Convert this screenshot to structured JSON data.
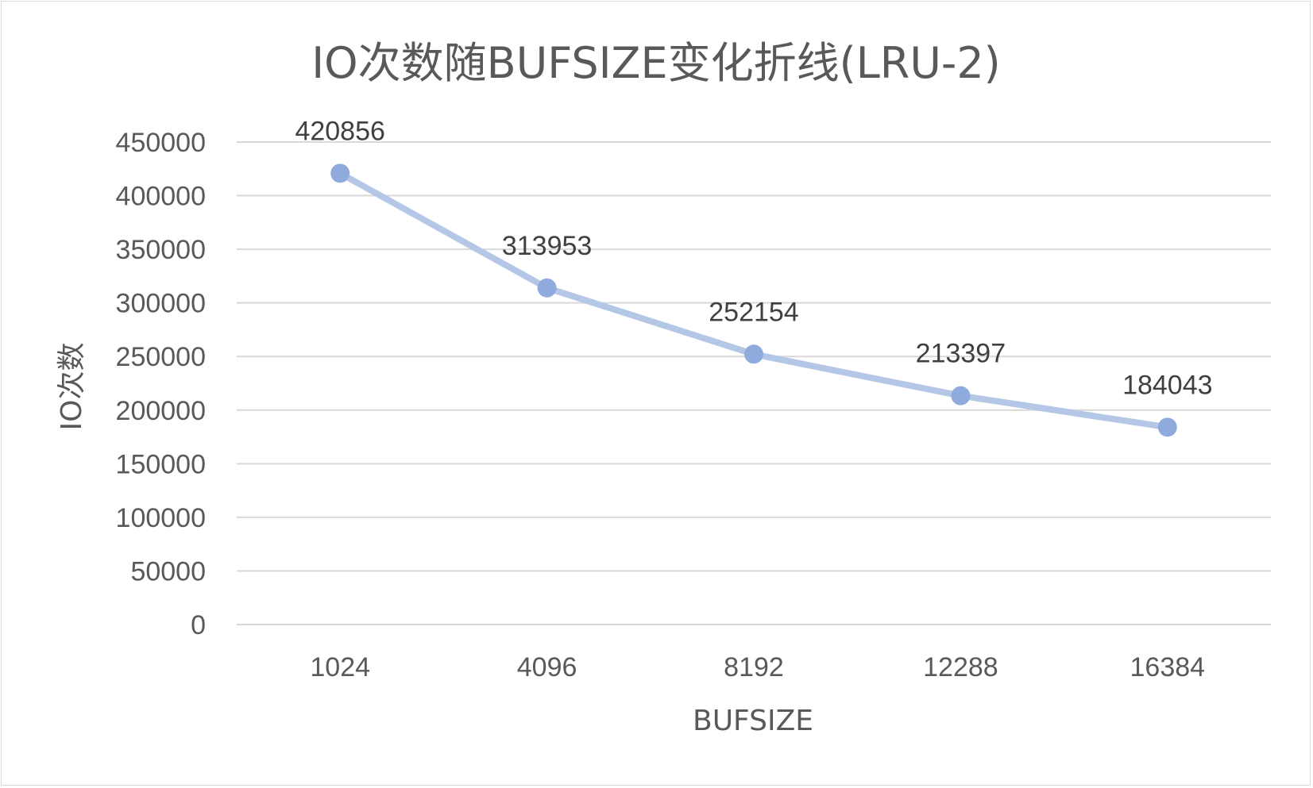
{
  "chart_data": {
    "type": "line",
    "title": "IO次数随BUFSIZE变化折线(LRU-2)",
    "xlabel": "BUFSIZE",
    "ylabel": "IO次数",
    "categories": [
      "1024",
      "4096",
      "8192",
      "12288",
      "16384"
    ],
    "series": [
      {
        "values": [
          420856,
          313953,
          252154,
          213397,
          184043
        ]
      }
    ],
    "ylim": [
      0,
      450000
    ],
    "yticks": [
      "0",
      "50000",
      "100000",
      "150000",
      "200000",
      "250000",
      "300000",
      "350000",
      "400000",
      "450000"
    ],
    "grid": true,
    "data_labels": [
      "420856",
      "313953",
      "252154",
      "213397",
      "184043"
    ],
    "colors": {
      "line": "#b4c7e7",
      "marker": "#8faadc",
      "grid": "#d9d9d9",
      "text": "#595959"
    }
  }
}
